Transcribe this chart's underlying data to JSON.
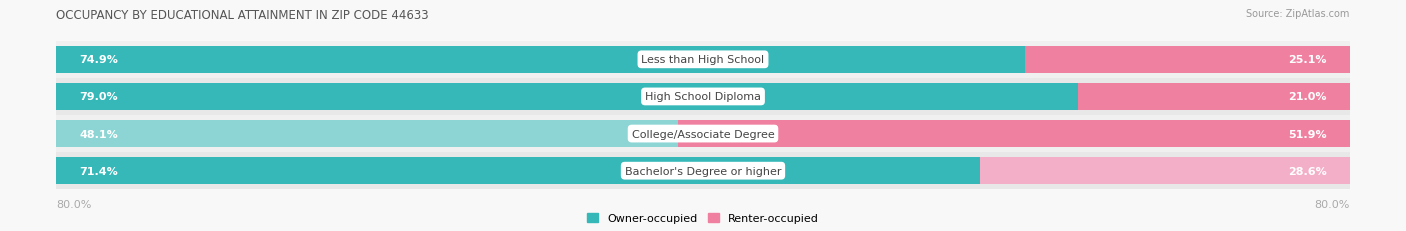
{
  "title": "OCCUPANCY BY EDUCATIONAL ATTAINMENT IN ZIP CODE 44633",
  "source": "Source: ZipAtlas.com",
  "categories": [
    "Less than High School",
    "High School Diploma",
    "College/Associate Degree",
    "Bachelor's Degree or higher"
  ],
  "owner_values": [
    74.9,
    79.0,
    48.1,
    71.4
  ],
  "renter_values": [
    25.1,
    21.0,
    51.9,
    28.6
  ],
  "owner_colors": [
    "#36b8b8",
    "#36b8b8",
    "#8dd4d4",
    "#36b8b8"
  ],
  "renter_colors": [
    "#f080a0",
    "#f080a0",
    "#f080a0",
    "#f4afc8"
  ],
  "row_bg_colors": [
    "#f0f0f0",
    "#e8e8e8",
    "#f0f0f0",
    "#e8e8e8"
  ],
  "title_color": "#555555",
  "axis_label_color": "#aaaaaa",
  "x_left_label": "80.0%",
  "x_right_label": "80.0%",
  "legend_owner": "Owner-occupied",
  "legend_renter": "Renter-occupied",
  "legend_owner_color": "#36b8b8",
  "legend_renter_color": "#f080a0",
  "figsize": [
    14.06,
    2.32
  ],
  "dpi": 100
}
